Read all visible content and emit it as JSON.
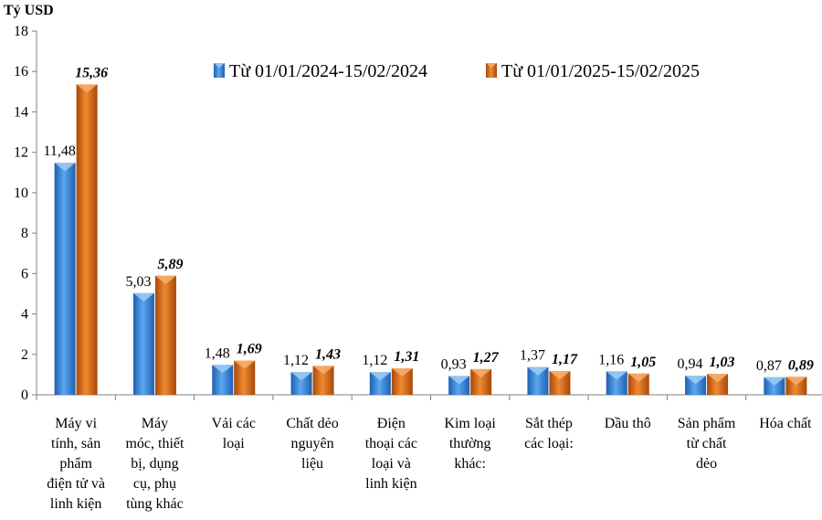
{
  "chart_data": {
    "type": "bar",
    "ylabel": "Tỷ USD",
    "ylim": [
      0,
      18
    ],
    "yticks": [
      0,
      2,
      4,
      6,
      8,
      10,
      12,
      14,
      16,
      18
    ],
    "legend_position": "top-right",
    "grid": false,
    "categories": [
      [
        "Máy vi",
        "tính, sản",
        "phẩm",
        "điện tử và",
        "linh kiện"
      ],
      [
        "Máy",
        "móc, thiết",
        "bị, dụng",
        "cụ, phụ",
        "tùng khác"
      ],
      [
        "Vải các",
        "loại"
      ],
      [
        "Chất dẻo",
        "nguyên",
        "liệu"
      ],
      [
        "Điện",
        "thoại các",
        "loại và",
        "linh kiện"
      ],
      [
        "Kim loại",
        "thường",
        "khác:"
      ],
      [
        "Sắt thép",
        "các loại:"
      ],
      [
        "Dầu thô"
      ],
      [
        "Sản phẩm",
        "từ chất",
        "dẻo"
      ],
      [
        "Hóa chất"
      ]
    ],
    "series": [
      {
        "name": "Từ 01/01/2024-15/02/2024",
        "color": "#3D8FE0",
        "values": [
          11.48,
          5.03,
          1.48,
          1.12,
          1.12,
          0.93,
          1.37,
          1.16,
          0.94,
          0.87
        ],
        "labels": [
          "11,48",
          "5,03",
          "1,48",
          "1,12",
          "1,12",
          "0,93",
          "1,37",
          "1,16",
          "0,94",
          "0,87"
        ]
      },
      {
        "name": "Từ 01/01/2025-15/02/2025",
        "color": "#E8731A",
        "values": [
          15.36,
          5.89,
          1.69,
          1.43,
          1.31,
          1.27,
          1.17,
          1.05,
          1.03,
          0.89
        ],
        "labels": [
          "15,36",
          "5,89",
          "1,69",
          "1,43",
          "1,31",
          "1,27",
          "1,17",
          "1,05",
          "1,03",
          "0,89"
        ]
      }
    ]
  }
}
